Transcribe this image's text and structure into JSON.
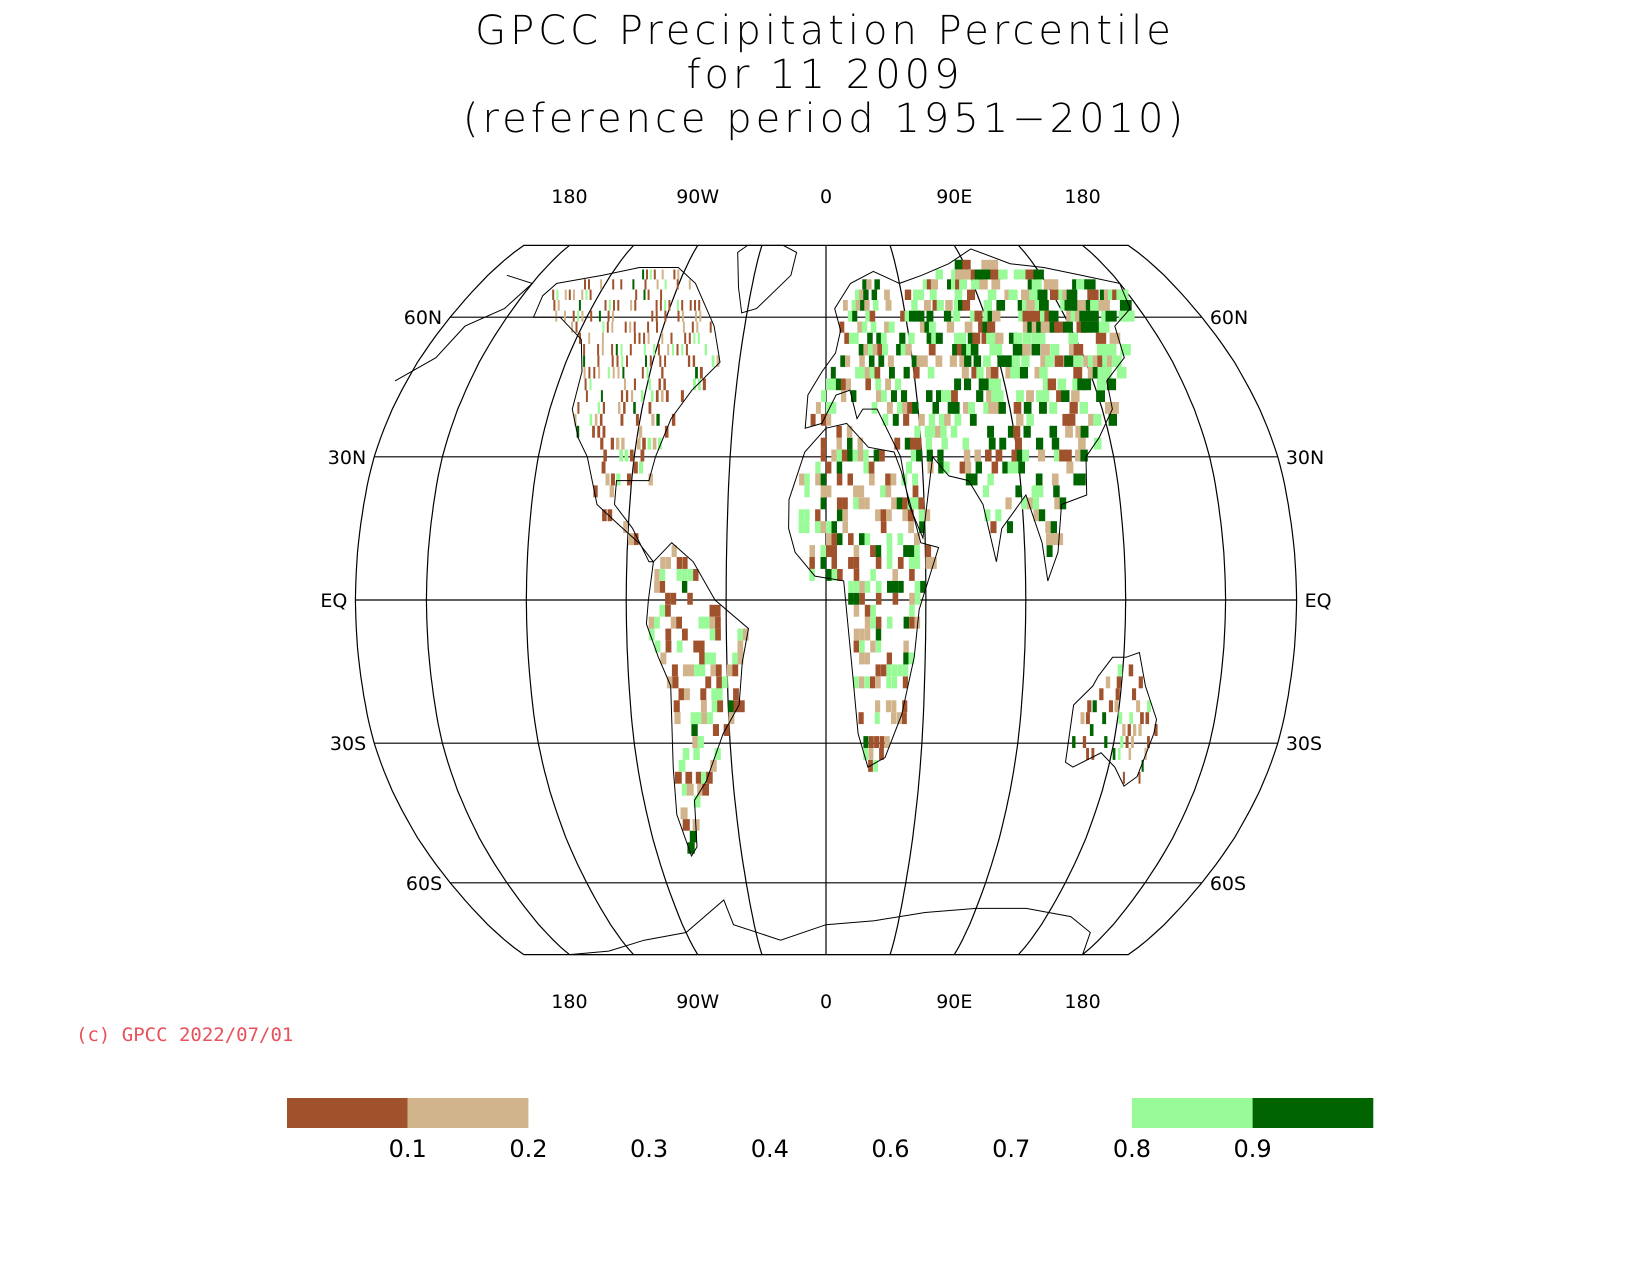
{
  "title": {
    "line1": "GPCC Precipitation Percentile",
    "line2": "for 11 2009",
    "line3": "(reference period 1951−2010)"
  },
  "map": {
    "projection": "Robinson",
    "top_lon_labels": [
      "180",
      "90W",
      "0",
      "90E",
      "180"
    ],
    "bottom_lon_labels": [
      "180",
      "90W",
      "0",
      "90E",
      "180"
    ],
    "lat_labels_left": [
      "60N",
      "30N",
      "EQ",
      "30S",
      "60S"
    ],
    "lat_labels_right": [
      "60N",
      "30N",
      "EQ",
      "30S",
      "60S"
    ],
    "colors": {
      "very_dry": "#a0522d",
      "dry": "#d2b48c",
      "wet": "#98fb98",
      "very_wet": "#006400"
    }
  },
  "copyright": "(c) GPCC 2022/07/01",
  "legend": {
    "labels": [
      "0.1",
      "0.2",
      "0.3",
      "0.4",
      "0.6",
      "0.7",
      "0.8",
      "0.9"
    ],
    "boxes": [
      {
        "color": "#a0522d",
        "from_index": 0
      },
      {
        "color": "#d2b48c",
        "from_index": 1
      },
      {
        "color": "#98fb98",
        "from_index": 7
      },
      {
        "color": "#006400",
        "from_index": 8
      }
    ]
  }
}
